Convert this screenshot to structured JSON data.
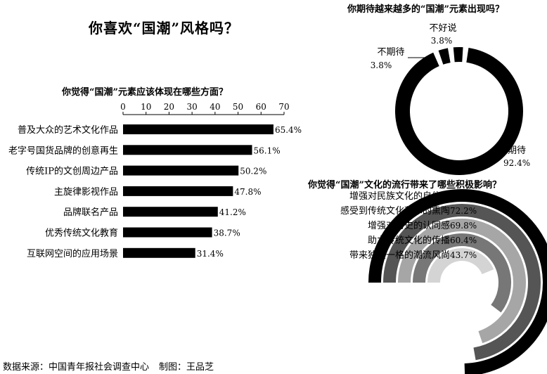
{
  "main_title": "你喜欢“国潮”风格吗？",
  "source": {
    "data_source": "数据来源：中国青年报社会调查中心",
    "author": "制图：王品芝"
  },
  "chart_data": [
    {
      "type": "bar",
      "orientation": "horizontal",
      "title": "你觉得“国潮”元素应该体现在哪些方面？",
      "categories": [
        "普及大众的艺术文化作品",
        "老字号国货品牌的创意再生",
        "传统IP的文创周边产品",
        "主旋律影视作品",
        "品牌联名产品",
        "优秀传统文化教育",
        "互联网空间的应用场景"
      ],
      "values": [
        65.4,
        56.1,
        50.2,
        47.8,
        41.2,
        38.7,
        31.4
      ],
      "value_labels": [
        "65.4%",
        "56.1%",
        "50.2%",
        "47.8%",
        "41.2%",
        "38.7%",
        "31.4%"
      ],
      "xlim": [
        0,
        70
      ],
      "xticks": [
        "0",
        "10",
        "20",
        "30",
        "40",
        "50",
        "60",
        "70"
      ],
      "axis_position": "top",
      "bar_color": "#000000"
    },
    {
      "type": "pie",
      "style": "donut",
      "title": "你期待越来越多的“国潮”元素出现吗？",
      "slices": [
        {
          "label": "期待",
          "value": 92.4,
          "value_label": "92.4%",
          "color": "#000000"
        },
        {
          "label": "不期待",
          "value": 3.8,
          "value_label": "3.8%",
          "color": "#000000"
        },
        {
          "label": "不好说",
          "value": 3.8,
          "value_label": "3.8%",
          "color": "#000000"
        }
      ]
    },
    {
      "type": "bar",
      "style": "radial",
      "title": "你觉得“国潮”文化的流行带来了哪些积极影响？",
      "categories": [
        "增强对民族文化的自信心",
        "感受到传统文化艺术的熏陶",
        "增强对历史的认同感",
        "助力传统文化的传播",
        "带来独具一格的潮流风尚"
      ],
      "values": [
        74.5,
        72.2,
        69.8,
        60.4,
        43.7
      ],
      "value_labels": [
        "74.5%",
        "72.2%",
        "69.8%",
        "60.4%",
        "43.7%"
      ],
      "colors": [
        "#000000",
        "#555555",
        "#a6a6a6",
        "#777777",
        "#d4d4d4"
      ],
      "max": 100
    }
  ]
}
